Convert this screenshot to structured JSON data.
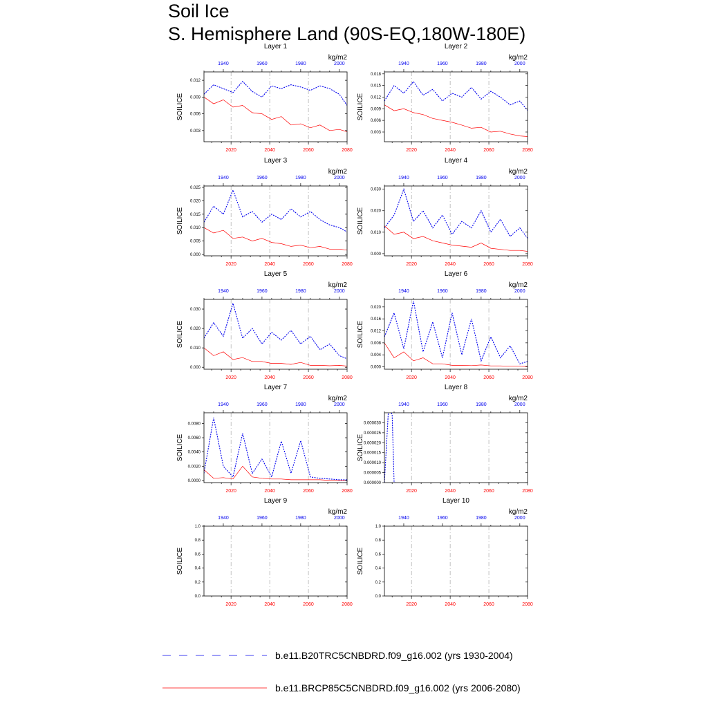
{
  "title_line1": "Soil Ice",
  "title_line2": "S. Hemisphere Land (90S-EQ,180W-180E)",
  "units": "kg/m2",
  "ylabel": "SOILICE",
  "colors": {
    "historical": "#0000ee",
    "future": "#ff0000",
    "axis": "#000000",
    "grid": "#999999"
  },
  "legend": [
    {
      "label": "b.e11.B20TRC5CNBDRD.f09_g16.002 (yrs 1930-2004)",
      "color": "#0000ee",
      "style": "dashed"
    },
    {
      "label": "b.e11.BRCP85C5CNBDRD.f09_g16.002 (yrs 2006-2080)",
      "color": "#ff0000",
      "style": "solid"
    }
  ],
  "chart_data": [
    {
      "type": "line",
      "title": "Layer 1",
      "ylabel": "SOILICE",
      "units": "kg/m2",
      "x_bottom_range": [
        2006,
        2080
      ],
      "x_bottom_ticks": [
        2020,
        2040,
        2060,
        2080
      ],
      "x_top_range": [
        1930,
        2004
      ],
      "x_top_ticks": [
        1940,
        1960,
        1980,
        2000
      ],
      "ylim": [
        0.001,
        0.0135
      ],
      "y_ticks": [
        "0.003",
        "0.006",
        "0.009",
        "0.012"
      ],
      "y_tick_values": [
        0.003,
        0.006,
        0.009,
        0.012
      ],
      "series": [
        {
          "name": "b.e11.B20TRC5CNBDRD.f09_g16.002 (yrs 1930-2004)",
          "axis": "top",
          "x_start": 1930,
          "x_step": 5,
          "values": [
            0.0095,
            0.0112,
            0.0105,
            0.0098,
            0.0118,
            0.01,
            0.009,
            0.011,
            0.0105,
            0.0112,
            0.0108,
            0.0102,
            0.011,
            0.0105,
            0.0095,
            0.007
          ]
        },
        {
          "name": "b.e11.BRCP85C5CNBDRD.f09_g16.002 (yrs 2006-2080)",
          "axis": "bottom",
          "x_start": 2006,
          "x_step": 5,
          "values": [
            0.009,
            0.0078,
            0.0085,
            0.0072,
            0.0075,
            0.0062,
            0.006,
            0.005,
            0.0055,
            0.004,
            0.0042,
            0.0035,
            0.004,
            0.003,
            0.0032,
            0.0027
          ]
        }
      ]
    },
    {
      "type": "line",
      "title": "Layer 2",
      "ylabel": "SOILICE",
      "units": "kg/m2",
      "x_bottom_range": [
        2006,
        2080
      ],
      "x_bottom_ticks": [
        2020,
        2040,
        2060,
        2080
      ],
      "x_top_range": [
        1930,
        2004
      ],
      "x_top_ticks": [
        1940,
        1960,
        1980,
        2000
      ],
      "ylim": [
        0.0005,
        0.0185
      ],
      "y_ticks": [
        "0.003",
        "0.006",
        "0.009",
        "0.012",
        "0.015",
        "0.018"
      ],
      "y_tick_values": [
        0.003,
        0.006,
        0.009,
        0.012,
        0.015,
        0.018
      ],
      "series": [
        {
          "name": "b.e11.B20TRC5CNBDRD.f09_g16.002 (yrs 1930-2004)",
          "axis": "top",
          "x_start": 1930,
          "x_step": 5,
          "values": [
            0.011,
            0.015,
            0.013,
            0.016,
            0.0125,
            0.014,
            0.011,
            0.013,
            0.012,
            0.0145,
            0.0115,
            0.0135,
            0.012,
            0.01,
            0.011,
            0.008
          ]
        },
        {
          "name": "b.e11.BRCP85C5CNBDRD.f09_g16.002 (yrs 2006-2080)",
          "axis": "bottom",
          "x_start": 2006,
          "x_step": 5,
          "values": [
            0.01,
            0.0085,
            0.009,
            0.008,
            0.0075,
            0.0065,
            0.006,
            0.0055,
            0.0048,
            0.004,
            0.0042,
            0.003,
            0.0032,
            0.0025,
            0.002,
            0.0018
          ]
        }
      ]
    },
    {
      "type": "line",
      "title": "Layer 3",
      "ylabel": "SOILICE",
      "units": "kg/m2",
      "x_bottom_range": [
        2006,
        2080
      ],
      "x_bottom_ticks": [
        2020,
        2040,
        2060,
        2080
      ],
      "x_top_range": [
        1930,
        2004
      ],
      "x_top_ticks": [
        1940,
        1960,
        1980,
        2000
      ],
      "ylim": [
        -0.0005,
        0.0255
      ],
      "y_ticks": [
        "0.000",
        "0.005",
        "0.010",
        "0.015",
        "0.020",
        "0.025"
      ],
      "y_tick_values": [
        0.0,
        0.005,
        0.01,
        0.015,
        0.02,
        0.025
      ],
      "series": [
        {
          "name": "b.e11.B20TRC5CNBDRD.f09_g16.002 (yrs 1930-2004)",
          "axis": "top",
          "x_start": 1930,
          "x_step": 5,
          "values": [
            0.012,
            0.018,
            0.015,
            0.024,
            0.014,
            0.016,
            0.012,
            0.015,
            0.013,
            0.017,
            0.014,
            0.016,
            0.013,
            0.011,
            0.01,
            0.008
          ]
        },
        {
          "name": "b.e11.BRCP85C5CNBDRD.f09_g16.002 (yrs 2006-2080)",
          "axis": "bottom",
          "x_start": 2006,
          "x_step": 5,
          "values": [
            0.01,
            0.008,
            0.009,
            0.006,
            0.0065,
            0.005,
            0.006,
            0.0045,
            0.004,
            0.003,
            0.0035,
            0.0025,
            0.003,
            0.002,
            0.002,
            0.0015
          ]
        }
      ]
    },
    {
      "type": "line",
      "title": "Layer 4",
      "ylabel": "SOILICE",
      "units": "kg/m2",
      "x_bottom_range": [
        2006,
        2080
      ],
      "x_bottom_ticks": [
        2020,
        2040,
        2060,
        2080
      ],
      "x_top_range": [
        1930,
        2004
      ],
      "x_top_ticks": [
        1940,
        1960,
        1980,
        2000
      ],
      "ylim": [
        -0.001,
        0.0315
      ],
      "y_ticks": [
        "0.000",
        "0.010",
        "0.020",
        "0.030"
      ],
      "y_tick_values": [
        0.0,
        0.01,
        0.02,
        0.03
      ],
      "series": [
        {
          "name": "b.e11.B20TRC5CNBDRD.f09_g16.002 (yrs 1930-2004)",
          "axis": "top",
          "x_start": 1930,
          "x_step": 5,
          "values": [
            0.012,
            0.018,
            0.03,
            0.015,
            0.02,
            0.012,
            0.018,
            0.009,
            0.015,
            0.012,
            0.02,
            0.01,
            0.016,
            0.008,
            0.012,
            0.006
          ]
        },
        {
          "name": "b.e11.BRCP85C5CNBDRD.f09_g16.002 (yrs 2006-2080)",
          "axis": "bottom",
          "x_start": 2006,
          "x_step": 5,
          "values": [
            0.013,
            0.009,
            0.01,
            0.007,
            0.008,
            0.006,
            0.005,
            0.004,
            0.0035,
            0.003,
            0.005,
            0.0025,
            0.002,
            0.0015,
            0.0015,
            0.001
          ]
        }
      ]
    },
    {
      "type": "line",
      "title": "Layer 5",
      "ylabel": "SOILICE",
      "units": "kg/m2",
      "x_bottom_range": [
        2006,
        2080
      ],
      "x_bottom_ticks": [
        2020,
        2040,
        2060,
        2080
      ],
      "x_top_range": [
        1930,
        2004
      ],
      "x_top_ticks": [
        1940,
        1960,
        1980,
        2000
      ],
      "ylim": [
        -0.001,
        0.035
      ],
      "y_ticks": [
        "0.000",
        "0.010",
        "0.020",
        "0.030"
      ],
      "y_tick_values": [
        0.0,
        0.01,
        0.02,
        0.03
      ],
      "series": [
        {
          "name": "b.e11.B20TRC5CNBDRD.f09_g16.002 (yrs 1930-2004)",
          "axis": "top",
          "x_start": 1930,
          "x_step": 5,
          "values": [
            0.015,
            0.023,
            0.016,
            0.033,
            0.015,
            0.02,
            0.012,
            0.018,
            0.014,
            0.019,
            0.012,
            0.016,
            0.009,
            0.012,
            0.006,
            0.004
          ]
        },
        {
          "name": "b.e11.BRCP85C5CNBDRD.f09_g16.002 (yrs 2006-2080)",
          "axis": "bottom",
          "x_start": 2006,
          "x_step": 5,
          "values": [
            0.01,
            0.006,
            0.008,
            0.004,
            0.005,
            0.003,
            0.003,
            0.002,
            0.002,
            0.0015,
            0.0025,
            0.001,
            0.001,
            0.0008,
            0.001,
            0.0005
          ]
        }
      ]
    },
    {
      "type": "line",
      "title": "Layer 6",
      "ylabel": "SOILICE",
      "units": "kg/m2",
      "x_bottom_range": [
        2006,
        2080
      ],
      "x_bottom_ticks": [
        2020,
        2040,
        2060,
        2080
      ],
      "x_top_range": [
        1930,
        2004
      ],
      "x_top_ticks": [
        1940,
        1960,
        1980,
        2000
      ],
      "ylim": [
        -0.0008,
        0.0225
      ],
      "y_ticks": [
        "0.000",
        "0.004",
        "0.008",
        "0.012",
        "0.016",
        "0.020"
      ],
      "y_tick_values": [
        0.0,
        0.004,
        0.008,
        0.012,
        0.016,
        0.02
      ],
      "series": [
        {
          "name": "b.e11.B20TRC5CNBDRD.f09_g16.002 (yrs 1930-2004)",
          "axis": "top",
          "x_start": 1930,
          "x_step": 5,
          "values": [
            0.01,
            0.018,
            0.006,
            0.022,
            0.005,
            0.015,
            0.003,
            0.018,
            0.004,
            0.016,
            0.002,
            0.01,
            0.003,
            0.007,
            0.001,
            0.002
          ]
        },
        {
          "name": "b.e11.BRCP85C5CNBDRD.f09_g16.002 (yrs 2006-2080)",
          "axis": "bottom",
          "x_start": 2006,
          "x_step": 5,
          "values": [
            0.008,
            0.003,
            0.005,
            0.002,
            0.003,
            0.001,
            0.001,
            0.0005,
            0.0005,
            0.0004,
            0.0006,
            0.0003,
            0.0003,
            0.0002,
            0.0002,
            0.0001
          ]
        }
      ]
    },
    {
      "type": "line",
      "title": "Layer 7",
      "ylabel": "SOILICE",
      "units": "kg/m2",
      "x_bottom_range": [
        2006,
        2080
      ],
      "x_bottom_ticks": [
        2020,
        2040,
        2060,
        2080
      ],
      "x_top_range": [
        1930,
        2004
      ],
      "x_top_ticks": [
        1940,
        1960,
        1980,
        2000
      ],
      "ylim": [
        -0.0003,
        0.0095
      ],
      "y_ticks": [
        "0.0000",
        "0.0020",
        "0.0040",
        "0.0060",
        "0.0080"
      ],
      "y_tick_values": [
        0.0,
        0.002,
        0.004,
        0.006,
        0.008
      ],
      "series": [
        {
          "name": "b.e11.B20TRC5CNBDRD.f09_g16.002 (yrs 1930-2004)",
          "axis": "top",
          "x_start": 1930,
          "x_step": 5,
          "values": [
            0.001,
            0.0088,
            0.002,
            0.0005,
            0.0066,
            0.001,
            0.003,
            0.0005,
            0.0055,
            0.001,
            0.0056,
            0.0005,
            0.0003,
            0.0002,
            0.0001,
            0.0001
          ]
        },
        {
          "name": "b.e11.BRCP85C5CNBDRD.f09_g16.002 (yrs 2006-2080)",
          "axis": "bottom",
          "x_start": 2006,
          "x_step": 5,
          "values": [
            0.0015,
            0.0003,
            0.0004,
            0.0002,
            0.002,
            0.0005,
            0.0003,
            0.0002,
            0.0002,
            0.0001,
            0.0001,
            0.0001,
            0.0001,
            0.0,
            0.0,
            0.0
          ]
        }
      ]
    },
    {
      "type": "line",
      "title": "Layer 8",
      "ylabel": "SOILICE",
      "units": "kg/m2",
      "x_bottom_range": [
        2006,
        2080
      ],
      "x_bottom_ticks": [
        2020,
        2040,
        2060,
        2080
      ],
      "x_top_range": [
        1930,
        2004
      ],
      "x_top_ticks": [
        1940,
        1960,
        1980,
        2000
      ],
      "ylim": [
        0.0,
        3.5e-05
      ],
      "y_ticks": [
        "0.000000",
        "0.000005",
        "0.000010",
        "0.000015",
        "0.000020",
        "0.000025",
        "0.000030"
      ],
      "y_tick_values": [
        0.0,
        5e-06,
        1e-05,
        1.5e-05,
        2e-05,
        2.5e-05,
        3e-05
      ],
      "series": [
        {
          "name": "b.e11.B20TRC5CNBDRD.f09_g16.002 (yrs 1930-2004)",
          "axis": "top",
          "x": [
            1930,
            1932,
            1933,
            1934,
            1935,
            1936
          ],
          "values": [
            0.0,
            3.5e-05,
            3.6e-05,
            3.4e-05,
            0.0,
            0.0
          ]
        }
      ]
    },
    {
      "type": "line",
      "title": "Layer 9",
      "ylabel": "SOILICE",
      "units": "kg/m2",
      "x_bottom_range": [
        2006,
        2080
      ],
      "x_bottom_ticks": [
        2020,
        2040,
        2060,
        2080
      ],
      "x_top_range": [
        1930,
        2004
      ],
      "x_top_ticks": [
        1940,
        1960,
        1980,
        2000
      ],
      "ylim": [
        0.0,
        1.0
      ],
      "y_ticks": [
        "0.0",
        "0.2",
        "0.4",
        "0.6",
        "0.8",
        "1.0"
      ],
      "y_tick_values": [
        0.0,
        0.2,
        0.4,
        0.6,
        0.8,
        1.0
      ],
      "series": []
    },
    {
      "type": "line",
      "title": "Layer 10",
      "ylabel": "SOILICE",
      "units": "kg/m2",
      "x_bottom_range": [
        2006,
        2080
      ],
      "x_bottom_ticks": [
        2020,
        2040,
        2060,
        2080
      ],
      "x_top_range": [
        1930,
        2004
      ],
      "x_top_ticks": [
        1940,
        1960,
        1980,
        2000
      ],
      "ylim": [
        0.0,
        1.0
      ],
      "y_ticks": [
        "0.0",
        "0.2",
        "0.4",
        "0.6",
        "0.8",
        "1.0"
      ],
      "y_tick_values": [
        0.0,
        0.2,
        0.4,
        0.6,
        0.8,
        1.0
      ],
      "series": []
    }
  ]
}
